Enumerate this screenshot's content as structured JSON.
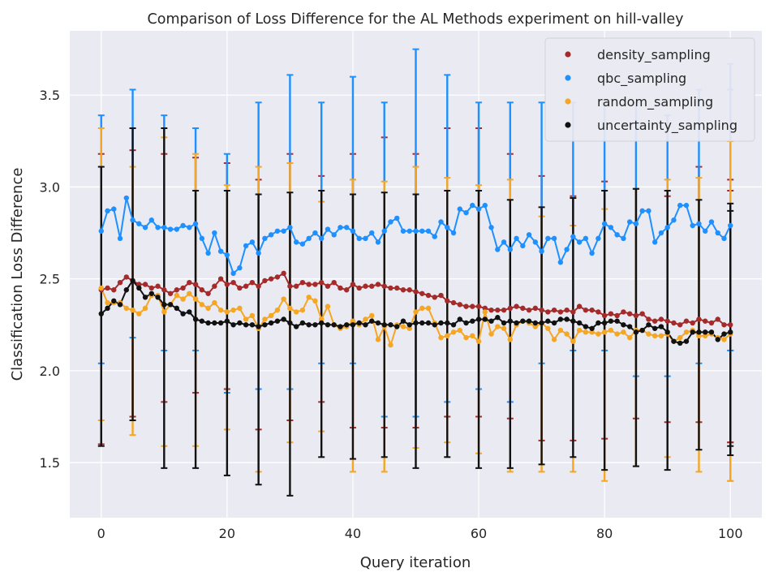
{
  "chart_data": {
    "type": "line",
    "title": "Comparison of Loss Difference for the AL Methods experiment on hill-valley",
    "xlabel": "Query iteration",
    "ylabel": "Classification Loss Difference",
    "xlim": [
      -5,
      105
    ],
    "ylim": [
      1.2,
      3.85
    ],
    "xticks": [
      0,
      20,
      40,
      60,
      80,
      100
    ],
    "yticks": [
      1.5,
      2.0,
      2.5,
      3.0,
      3.5
    ],
    "xtick_labels": [
      "0",
      "20",
      "40",
      "60",
      "80",
      "100"
    ],
    "ytick_labels": [
      "1.5",
      "2.0",
      "2.5",
      "3.0",
      "3.5"
    ],
    "grid": true,
    "legend_position": "top-right",
    "x": [
      0,
      1,
      2,
      3,
      4,
      5,
      6,
      7,
      8,
      9,
      10,
      11,
      12,
      13,
      14,
      15,
      16,
      17,
      18,
      19,
      20,
      21,
      22,
      23,
      24,
      25,
      26,
      27,
      28,
      29,
      30,
      31,
      32,
      33,
      34,
      35,
      36,
      37,
      38,
      39,
      40,
      41,
      42,
      43,
      44,
      45,
      46,
      47,
      48,
      49,
      50,
      51,
      52,
      53,
      54,
      55,
      56,
      57,
      58,
      59,
      60,
      61,
      62,
      63,
      64,
      65,
      66,
      67,
      68,
      69,
      70,
      71,
      72,
      73,
      74,
      75,
      76,
      77,
      78,
      79,
      80,
      81,
      82,
      83,
      84,
      85,
      86,
      87,
      88,
      89,
      90,
      91,
      92,
      93,
      94,
      95,
      96,
      97,
      98,
      99,
      100
    ],
    "errorbar_every": 5,
    "series": [
      {
        "name": "density_sampling",
        "color": "#a52a2a",
        "values": [
          2.44,
          2.45,
          2.44,
          2.48,
          2.51,
          2.49,
          2.47,
          2.47,
          2.45,
          2.46,
          2.44,
          2.42,
          2.44,
          2.45,
          2.48,
          2.47,
          2.44,
          2.42,
          2.46,
          2.5,
          2.47,
          2.48,
          2.45,
          2.46,
          2.48,
          2.46,
          2.49,
          2.5,
          2.51,
          2.53,
          2.46,
          2.46,
          2.48,
          2.47,
          2.47,
          2.48,
          2.46,
          2.48,
          2.45,
          2.44,
          2.47,
          2.45,
          2.46,
          2.46,
          2.47,
          2.46,
          2.45,
          2.45,
          2.44,
          2.44,
          2.43,
          2.42,
          2.41,
          2.4,
          2.41,
          2.38,
          2.37,
          2.36,
          2.35,
          2.35,
          2.35,
          2.34,
          2.33,
          2.33,
          2.33,
          2.34,
          2.35,
          2.34,
          2.33,
          2.34,
          2.33,
          2.32,
          2.33,
          2.32,
          2.33,
          2.32,
          2.35,
          2.33,
          2.33,
          2.32,
          2.3,
          2.31,
          2.3,
          2.32,
          2.31,
          2.3,
          2.31,
          2.28,
          2.27,
          2.28,
          2.27,
          2.26,
          2.25,
          2.27,
          2.26,
          2.28,
          2.27,
          2.26,
          2.28,
          2.25,
          2.25
        ],
        "error_low": [
          1.6,
          1.75,
          1.83,
          1.88,
          1.9,
          1.68,
          1.73,
          1.83,
          1.69,
          1.69,
          1.69,
          1.75,
          1.75,
          1.74,
          1.62,
          1.62,
          1.63,
          1.74,
          1.72,
          1.72,
          1.61,
          1.61
        ],
        "error_high": [
          3.18,
          3.2,
          3.18,
          3.16,
          3.13,
          3.04,
          3.18,
          3.06,
          3.18,
          3.27,
          3.18,
          3.32,
          3.32,
          3.18,
          3.06,
          2.95,
          3.03,
          2.99,
          2.95,
          3.11,
          2.98,
          3.04
        ]
      },
      {
        "name": "qbc_sampling",
        "color": "#1e90ff",
        "values": [
          2.76,
          2.87,
          2.88,
          2.72,
          2.94,
          2.82,
          2.8,
          2.78,
          2.82,
          2.78,
          2.78,
          2.77,
          2.77,
          2.79,
          2.78,
          2.8,
          2.72,
          2.64,
          2.75,
          2.65,
          2.63,
          2.53,
          2.56,
          2.68,
          2.7,
          2.64,
          2.72,
          2.74,
          2.76,
          2.76,
          2.78,
          2.7,
          2.69,
          2.72,
          2.75,
          2.72,
          2.77,
          2.74,
          2.78,
          2.78,
          2.76,
          2.72,
          2.72,
          2.75,
          2.7,
          2.76,
          2.81,
          2.83,
          2.76,
          2.76,
          2.76,
          2.76,
          2.76,
          2.73,
          2.81,
          2.78,
          2.75,
          2.88,
          2.86,
          2.9,
          2.88,
          2.9,
          2.78,
          2.66,
          2.7,
          2.66,
          2.72,
          2.68,
          2.74,
          2.7,
          2.65,
          2.72,
          2.72,
          2.59,
          2.66,
          2.73,
          2.7,
          2.72,
          2.64,
          2.72,
          2.8,
          2.78,
          2.74,
          2.72,
          2.81,
          2.8,
          2.87,
          2.87,
          2.7,
          2.75,
          2.78,
          2.82,
          2.9,
          2.9,
          2.79,
          2.8,
          2.76,
          2.81,
          2.75,
          2.72,
          2.79
        ],
        "error_low": [
          2.04,
          2.18,
          2.11,
          2.11,
          1.88,
          1.9,
          1.9,
          2.04,
          2.04,
          1.75,
          1.75,
          1.83,
          1.9,
          1.83,
          2.04,
          2.11,
          2.11,
          1.97,
          1.97,
          2.04,
          2.11,
          2.11
        ],
        "error_high": [
          3.39,
          3.53,
          3.39,
          3.32,
          3.18,
          3.46,
          3.61,
          3.46,
          3.6,
          3.46,
          3.75,
          3.61,
          3.46,
          3.46,
          3.46,
          3.46,
          3.46,
          3.46,
          3.39,
          3.53,
          3.67,
          3.53
        ]
      },
      {
        "name": "random_sampling",
        "color": "#f5a623",
        "values": [
          2.45,
          2.37,
          2.37,
          2.37,
          2.34,
          2.33,
          2.31,
          2.34,
          2.41,
          2.41,
          2.32,
          2.36,
          2.41,
          2.39,
          2.42,
          2.39,
          2.36,
          2.34,
          2.37,
          2.33,
          2.32,
          2.33,
          2.34,
          2.28,
          2.3,
          2.23,
          2.28,
          2.3,
          2.33,
          2.39,
          2.34,
          2.32,
          2.33,
          2.4,
          2.38,
          2.28,
          2.35,
          2.25,
          2.23,
          2.24,
          2.27,
          2.25,
          2.28,
          2.3,
          2.17,
          2.24,
          2.14,
          2.25,
          2.24,
          2.23,
          2.32,
          2.34,
          2.34,
          2.26,
          2.18,
          2.19,
          2.21,
          2.22,
          2.18,
          2.19,
          2.16,
          2.32,
          2.2,
          2.24,
          2.23,
          2.17,
          2.25,
          2.27,
          2.26,
          2.24,
          2.26,
          2.23,
          2.17,
          2.22,
          2.2,
          2.16,
          2.22,
          2.21,
          2.21,
          2.2,
          2.21,
          2.22,
          2.2,
          2.21,
          2.18,
          2.22,
          2.22,
          2.2,
          2.19,
          2.19,
          2.2,
          2.16,
          2.18,
          2.21,
          2.22,
          2.19,
          2.19,
          2.2,
          2.18,
          2.17,
          2.2
        ],
        "error_low": [
          1.73,
          1.65,
          1.59,
          1.59,
          1.68,
          1.45,
          1.61,
          1.67,
          1.45,
          1.45,
          1.58,
          1.61,
          1.55,
          1.45,
          1.45,
          1.45,
          1.4,
          1.48,
          1.53,
          1.45,
          1.4,
          1.4
        ],
        "error_high": [
          3.32,
          3.11,
          3.27,
          3.18,
          3.01,
          3.11,
          3.13,
          2.92,
          3.04,
          3.03,
          3.11,
          3.05,
          3.01,
          3.04,
          2.84,
          2.79,
          2.88,
          2.99,
          3.04,
          3.05,
          3.25,
          3.25
        ]
      },
      {
        "name": "uncertainty_sampling",
        "color": "#111111",
        "values": [
          2.31,
          2.34,
          2.38,
          2.36,
          2.44,
          2.49,
          2.45,
          2.4,
          2.42,
          2.4,
          2.36,
          2.36,
          2.34,
          2.31,
          2.32,
          2.28,
          2.27,
          2.26,
          2.26,
          2.26,
          2.27,
          2.25,
          2.26,
          2.25,
          2.25,
          2.24,
          2.25,
          2.26,
          2.27,
          2.28,
          2.26,
          2.24,
          2.26,
          2.25,
          2.25,
          2.26,
          2.25,
          2.25,
          2.24,
          2.25,
          2.25,
          2.26,
          2.25,
          2.27,
          2.26,
          2.25,
          2.25,
          2.24,
          2.27,
          2.25,
          2.26,
          2.26,
          2.26,
          2.25,
          2.26,
          2.26,
          2.25,
          2.28,
          2.26,
          2.27,
          2.28,
          2.28,
          2.27,
          2.29,
          2.26,
          2.27,
          2.26,
          2.27,
          2.27,
          2.26,
          2.26,
          2.27,
          2.26,
          2.28,
          2.28,
          2.27,
          2.26,
          2.24,
          2.23,
          2.26,
          2.26,
          2.27,
          2.27,
          2.25,
          2.24,
          2.21,
          2.22,
          2.25,
          2.23,
          2.24,
          2.21,
          2.16,
          2.15,
          2.16,
          2.21,
          2.21,
          2.21,
          2.21,
          2.17,
          2.2,
          2.21
        ],
        "error_low": [
          1.59,
          1.73,
          1.47,
          1.47,
          1.43,
          1.38,
          1.32,
          1.53,
          1.52,
          1.53,
          1.47,
          1.53,
          1.47,
          1.47,
          1.49,
          1.53,
          1.46,
          1.48,
          1.46,
          1.57,
          1.59,
          1.54
        ],
        "error_high": [
          3.11,
          3.32,
          3.32,
          2.98,
          2.98,
          2.96,
          2.97,
          2.98,
          2.96,
          2.97,
          2.96,
          2.98,
          2.98,
          2.93,
          2.89,
          2.94,
          2.98,
          2.99,
          2.98,
          2.93,
          2.87,
          2.91
        ]
      }
    ]
  }
}
